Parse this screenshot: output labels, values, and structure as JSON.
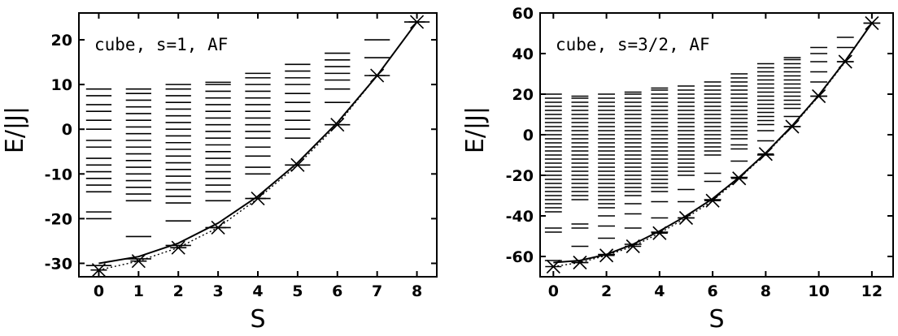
{
  "chart_data": [
    {
      "type": "scatter",
      "annotation": "cube, s=1, AF",
      "xlabel": "S",
      "ylabel": "E/|J|",
      "xlim": [
        -0.5,
        8.5
      ],
      "ylim": [
        -33,
        26
      ],
      "xticks": [
        0,
        1,
        2,
        3,
        4,
        5,
        6,
        7,
        8
      ],
      "yticks": [
        -30,
        -20,
        -10,
        0,
        10,
        20
      ],
      "grid": false,
      "levels": [
        {
          "S": 0,
          "energies": [
            -30.5,
            -20,
            -18.5,
            -14,
            -12.5,
            -11,
            -9.5,
            -8,
            -6.5,
            -4,
            -2.5,
            0,
            2,
            4,
            5.5,
            7.5,
            9
          ]
        },
        {
          "S": 1,
          "energies": [
            -29,
            -24,
            -16,
            -14.5,
            -13,
            -11.5,
            -10,
            -8.5,
            -7,
            -5.5,
            -4,
            -2.5,
            -1,
            0.5,
            2,
            3.5,
            5,
            6.5,
            8,
            9
          ]
        },
        {
          "S": 2,
          "energies": [
            -26,
            -20.5,
            -16.5,
            -15,
            -13.5,
            -12,
            -10.5,
            -9,
            -7.5,
            -6,
            -4.5,
            -3,
            -1.5,
            0,
            1.5,
            3,
            4.5,
            6,
            7.5,
            9,
            10
          ]
        },
        {
          "S": 3,
          "energies": [
            -22,
            -16,
            -14,
            -12.5,
            -11,
            -9.5,
            -8,
            -6.5,
            -5,
            -3.5,
            -2,
            -0.5,
            1,
            2.5,
            4,
            5.5,
            7,
            8.5,
            10,
            10.5
          ]
        },
        {
          "S": 4,
          "energies": [
            -15.5,
            -10,
            -8.5,
            -6,
            -4,
            -2,
            -0.5,
            1,
            2.5,
            4,
            5.5,
            7,
            8.5,
            10,
            11.5,
            12.5
          ]
        },
        {
          "S": 5,
          "energies": [
            -8,
            -2,
            0,
            2,
            4,
            6,
            8,
            10,
            11.5,
            13,
            14.5
          ]
        },
        {
          "S": 6,
          "energies": [
            1,
            6,
            9,
            11,
            12.5,
            14,
            15.5,
            17
          ]
        },
        {
          "S": 7,
          "energies": [
            12,
            16,
            20
          ]
        },
        {
          "S": 8,
          "energies": [
            24
          ]
        }
      ],
      "ground_states": [
        {
          "S": 0,
          "E": -31.5
        },
        {
          "S": 1,
          "E": -29.5
        },
        {
          "S": 2,
          "E": -26.5
        },
        {
          "S": 3,
          "E": -22
        },
        {
          "S": 4,
          "E": -15.5
        },
        {
          "S": 5,
          "E": -8
        },
        {
          "S": 6,
          "E": 1
        },
        {
          "S": 7,
          "E": 12
        },
        {
          "S": 8,
          "E": 24
        }
      ],
      "fit_curves": [
        {
          "style": "solid",
          "points": [
            [
              0,
              -30
            ],
            [
              1,
              -28.5
            ],
            [
              2,
              -25.5
            ],
            [
              3,
              -21
            ],
            [
              4,
              -15
            ],
            [
              5,
              -7.5
            ],
            [
              6,
              1.5
            ],
            [
              7,
              12
            ],
            [
              8,
              24
            ]
          ]
        },
        {
          "style": "dotted",
          "points": [
            [
              0,
              -31.5
            ],
            [
              1,
              -29.5
            ],
            [
              2,
              -26.5
            ],
            [
              3,
              -22
            ],
            [
              4,
              -15.5
            ],
            [
              5,
              -8
            ],
            [
              6,
              1
            ],
            [
              7,
              12
            ],
            [
              8,
              24
            ]
          ]
        }
      ]
    },
    {
      "type": "scatter",
      "annotation": "cube, s=3/2, AF",
      "xlabel": "S",
      "ylabel": "E/|J|",
      "xlim": [
        -0.5,
        12.8
      ],
      "ylim": [
        -70,
        60
      ],
      "xticks": [
        0,
        2,
        4,
        6,
        8,
        10,
        12
      ],
      "yticks": [
        -60,
        -40,
        -20,
        0,
        20,
        40,
        60
      ],
      "grid": false,
      "levels": [
        {
          "S": 0,
          "energies": [
            -62,
            -48,
            -46,
            -38,
            -36,
            -34,
            -32,
            -30,
            -28,
            -26,
            -24,
            -22,
            -20,
            -18,
            -16,
            -14,
            -12,
            -10,
            -8,
            -6,
            -4,
            -2,
            0,
            2,
            4,
            6,
            8,
            10,
            12,
            14,
            16,
            18,
            20
          ]
        },
        {
          "S": 1,
          "energies": [
            -63,
            -55,
            -46,
            -44,
            -32,
            -30,
            -28,
            -26,
            -24,
            -22,
            -20,
            -18,
            -16,
            -14,
            -12,
            -10,
            -8,
            -6,
            -4,
            -2,
            0,
            2,
            4,
            6,
            8,
            10,
            12,
            14,
            16,
            18,
            19
          ]
        },
        {
          "S": 2,
          "energies": [
            -59,
            -51,
            -45,
            -40,
            -36,
            -34,
            -32,
            -30,
            -28,
            -26,
            -24,
            -22,
            -20,
            -18,
            -16,
            -14,
            -12,
            -10,
            -8,
            -6,
            -4,
            -2,
            0,
            2,
            4,
            6,
            8,
            10,
            12,
            14,
            16,
            18,
            20
          ]
        },
        {
          "S": 3,
          "energies": [
            -54,
            -46,
            -39,
            -34,
            -30,
            -28,
            -26,
            -24,
            -22,
            -20,
            -18,
            -16,
            -14,
            -12,
            -10,
            -8,
            -6,
            -4,
            -2,
            0,
            2,
            4,
            6,
            8,
            10,
            12,
            14,
            16,
            18,
            20,
            21
          ]
        },
        {
          "S": 4,
          "energies": [
            -48,
            -41,
            -33,
            -28,
            -26,
            -24,
            -22,
            -20,
            -18,
            -16,
            -14,
            -12,
            -10,
            -8,
            -6,
            -4,
            -2,
            0,
            2,
            4,
            6,
            8,
            10,
            12,
            14,
            16,
            18,
            20,
            22,
            23
          ]
        },
        {
          "S": 5,
          "energies": [
            -41,
            -33,
            -27,
            -20,
            -18,
            -16,
            -14,
            -12,
            -10,
            -8,
            -6,
            -4,
            -2,
            0,
            2,
            4,
            6,
            8,
            10,
            12,
            14,
            16,
            18,
            20,
            22,
            24
          ]
        },
        {
          "S": 6,
          "energies": [
            -32,
            -23,
            -19,
            -10,
            -8,
            -6,
            -4,
            -2,
            0,
            2,
            4,
            6,
            8,
            10,
            12,
            14,
            16,
            18,
            20,
            22,
            24,
            26
          ]
        },
        {
          "S": 7,
          "energies": [
            -21,
            -13,
            -7,
            -5,
            -2,
            0,
            2,
            4,
            6,
            8,
            10,
            12,
            14,
            16,
            18,
            20,
            22,
            24,
            26,
            28,
            30
          ]
        },
        {
          "S": 8,
          "energies": [
            -10,
            -3,
            2,
            5,
            7,
            9,
            11,
            13,
            15,
            17,
            19,
            21,
            23,
            25,
            27,
            29,
            31,
            33,
            35
          ]
        },
        {
          "S": 9,
          "energies": [
            4,
            9,
            13,
            15,
            17,
            19,
            21,
            23,
            25,
            27,
            29,
            31,
            33,
            35,
            37,
            38
          ]
        },
        {
          "S": 10,
          "energies": [
            19,
            26,
            31,
            36,
            40,
            43
          ]
        },
        {
          "S": 11,
          "energies": [
            36,
            43,
            48
          ]
        },
        {
          "S": 12,
          "energies": [
            55
          ]
        }
      ],
      "ground_states": [
        {
          "S": 0,
          "E": -65
        },
        {
          "S": 1,
          "E": -63
        },
        {
          "S": 2,
          "E": -59.5
        },
        {
          "S": 3,
          "E": -55
        },
        {
          "S": 4,
          "E": -48.5
        },
        {
          "S": 5,
          "E": -41
        },
        {
          "S": 6,
          "E": -32.5
        },
        {
          "S": 7,
          "E": -21.5
        },
        {
          "S": 8,
          "E": -9.5
        },
        {
          "S": 9,
          "E": 4
        },
        {
          "S": 10,
          "E": 19
        },
        {
          "S": 11,
          "E": 36
        },
        {
          "S": 12,
          "E": 55
        }
      ],
      "fit_curves": [
        {
          "style": "solid",
          "points": [
            [
              0,
              -63
            ],
            [
              1,
              -62
            ],
            [
              2,
              -59
            ],
            [
              3,
              -54
            ],
            [
              4,
              -47.5
            ],
            [
              5,
              -40
            ],
            [
              6,
              -31.5
            ],
            [
              7,
              -21
            ],
            [
              8,
              -9
            ],
            [
              9,
              4.5
            ],
            [
              10,
              19.5
            ],
            [
              11,
              36.5
            ],
            [
              12,
              55
            ]
          ]
        },
        {
          "style": "dotted",
          "points": [
            [
              0,
              -65
            ],
            [
              1,
              -63
            ],
            [
              2,
              -59.5
            ],
            [
              3,
              -55
            ],
            [
              4,
              -48.5
            ],
            [
              5,
              -41
            ],
            [
              6,
              -32.5
            ],
            [
              7,
              -21.5
            ],
            [
              8,
              -9.5
            ],
            [
              9,
              4
            ],
            [
              10,
              19
            ],
            [
              11,
              36
            ],
            [
              12,
              55
            ]
          ]
        }
      ]
    }
  ]
}
